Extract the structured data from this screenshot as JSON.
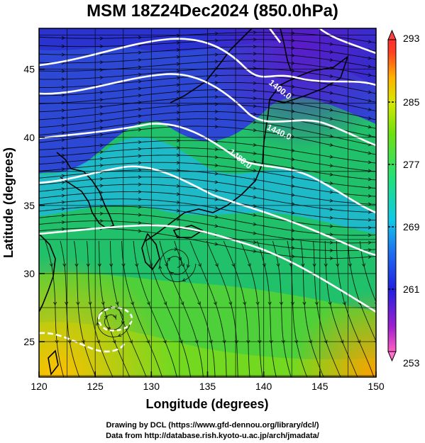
{
  "title": "MSM 18Z24Dec2024 (850.0hPa)",
  "map": {
    "lon_range": [
      120,
      150
    ],
    "lat_range": [
      22.4,
      48
    ],
    "x_ticks": [
      "120",
      "125",
      "130",
      "135",
      "140",
      "145",
      "150"
    ],
    "y_ticks": [
      "25",
      "30",
      "35",
      "40",
      "45"
    ],
    "xlabel": "Longitude (degrees)",
    "ylabel": "Latitude  (degrees)",
    "contour_labels": [
      "1400.0",
      "1440.0",
      "1480.0"
    ],
    "colorbar": {
      "range": [
        253,
        293
      ],
      "tick_labels": [
        "293",
        "285",
        "277",
        "269",
        "261",
        "253"
      ]
    },
    "colors": {
      "cold": "#2c2ce0",
      "cool": "#1f9ff0",
      "mild": "#20d68f",
      "warm": "#6fe014",
      "hot": "#ffb000",
      "land": "#000000",
      "contour": "#ffffff"
    }
  },
  "credits": {
    "line1": "Drawing by DCL (https://www.gfd-dennou.org/library/dcl/)",
    "line2": "Data from http://database.rish.kyoto-u.ac.jp/arch/jmadata/"
  }
}
